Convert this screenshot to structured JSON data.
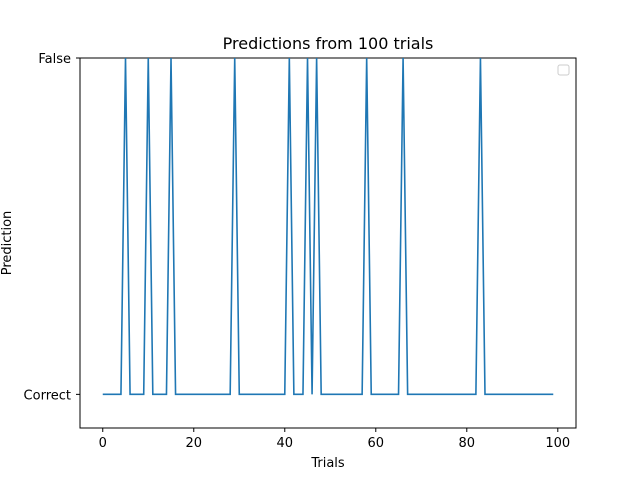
{
  "chart_data": {
    "type": "line",
    "title": "Predictions from 100 trials",
    "xlabel": "Trials",
    "ylabel": "Prediction",
    "xlim": [
      -5,
      104
    ],
    "ylim": [
      -0.1,
      1.0
    ],
    "x_ticks": [
      0,
      20,
      40,
      60,
      80,
      100
    ],
    "y_ticks": [
      {
        "value": 0,
        "label": "Correct"
      },
      {
        "value": 1,
        "label": "False"
      }
    ],
    "grid": false,
    "legend": {
      "placement": "top-right",
      "entries": []
    },
    "series": [
      {
        "color": "#1f77b4",
        "x_start": 0,
        "x_end": 99,
        "false_trials": [
          5,
          10,
          15,
          29,
          41,
          45,
          47,
          58,
          66,
          83
        ]
      }
    ]
  }
}
